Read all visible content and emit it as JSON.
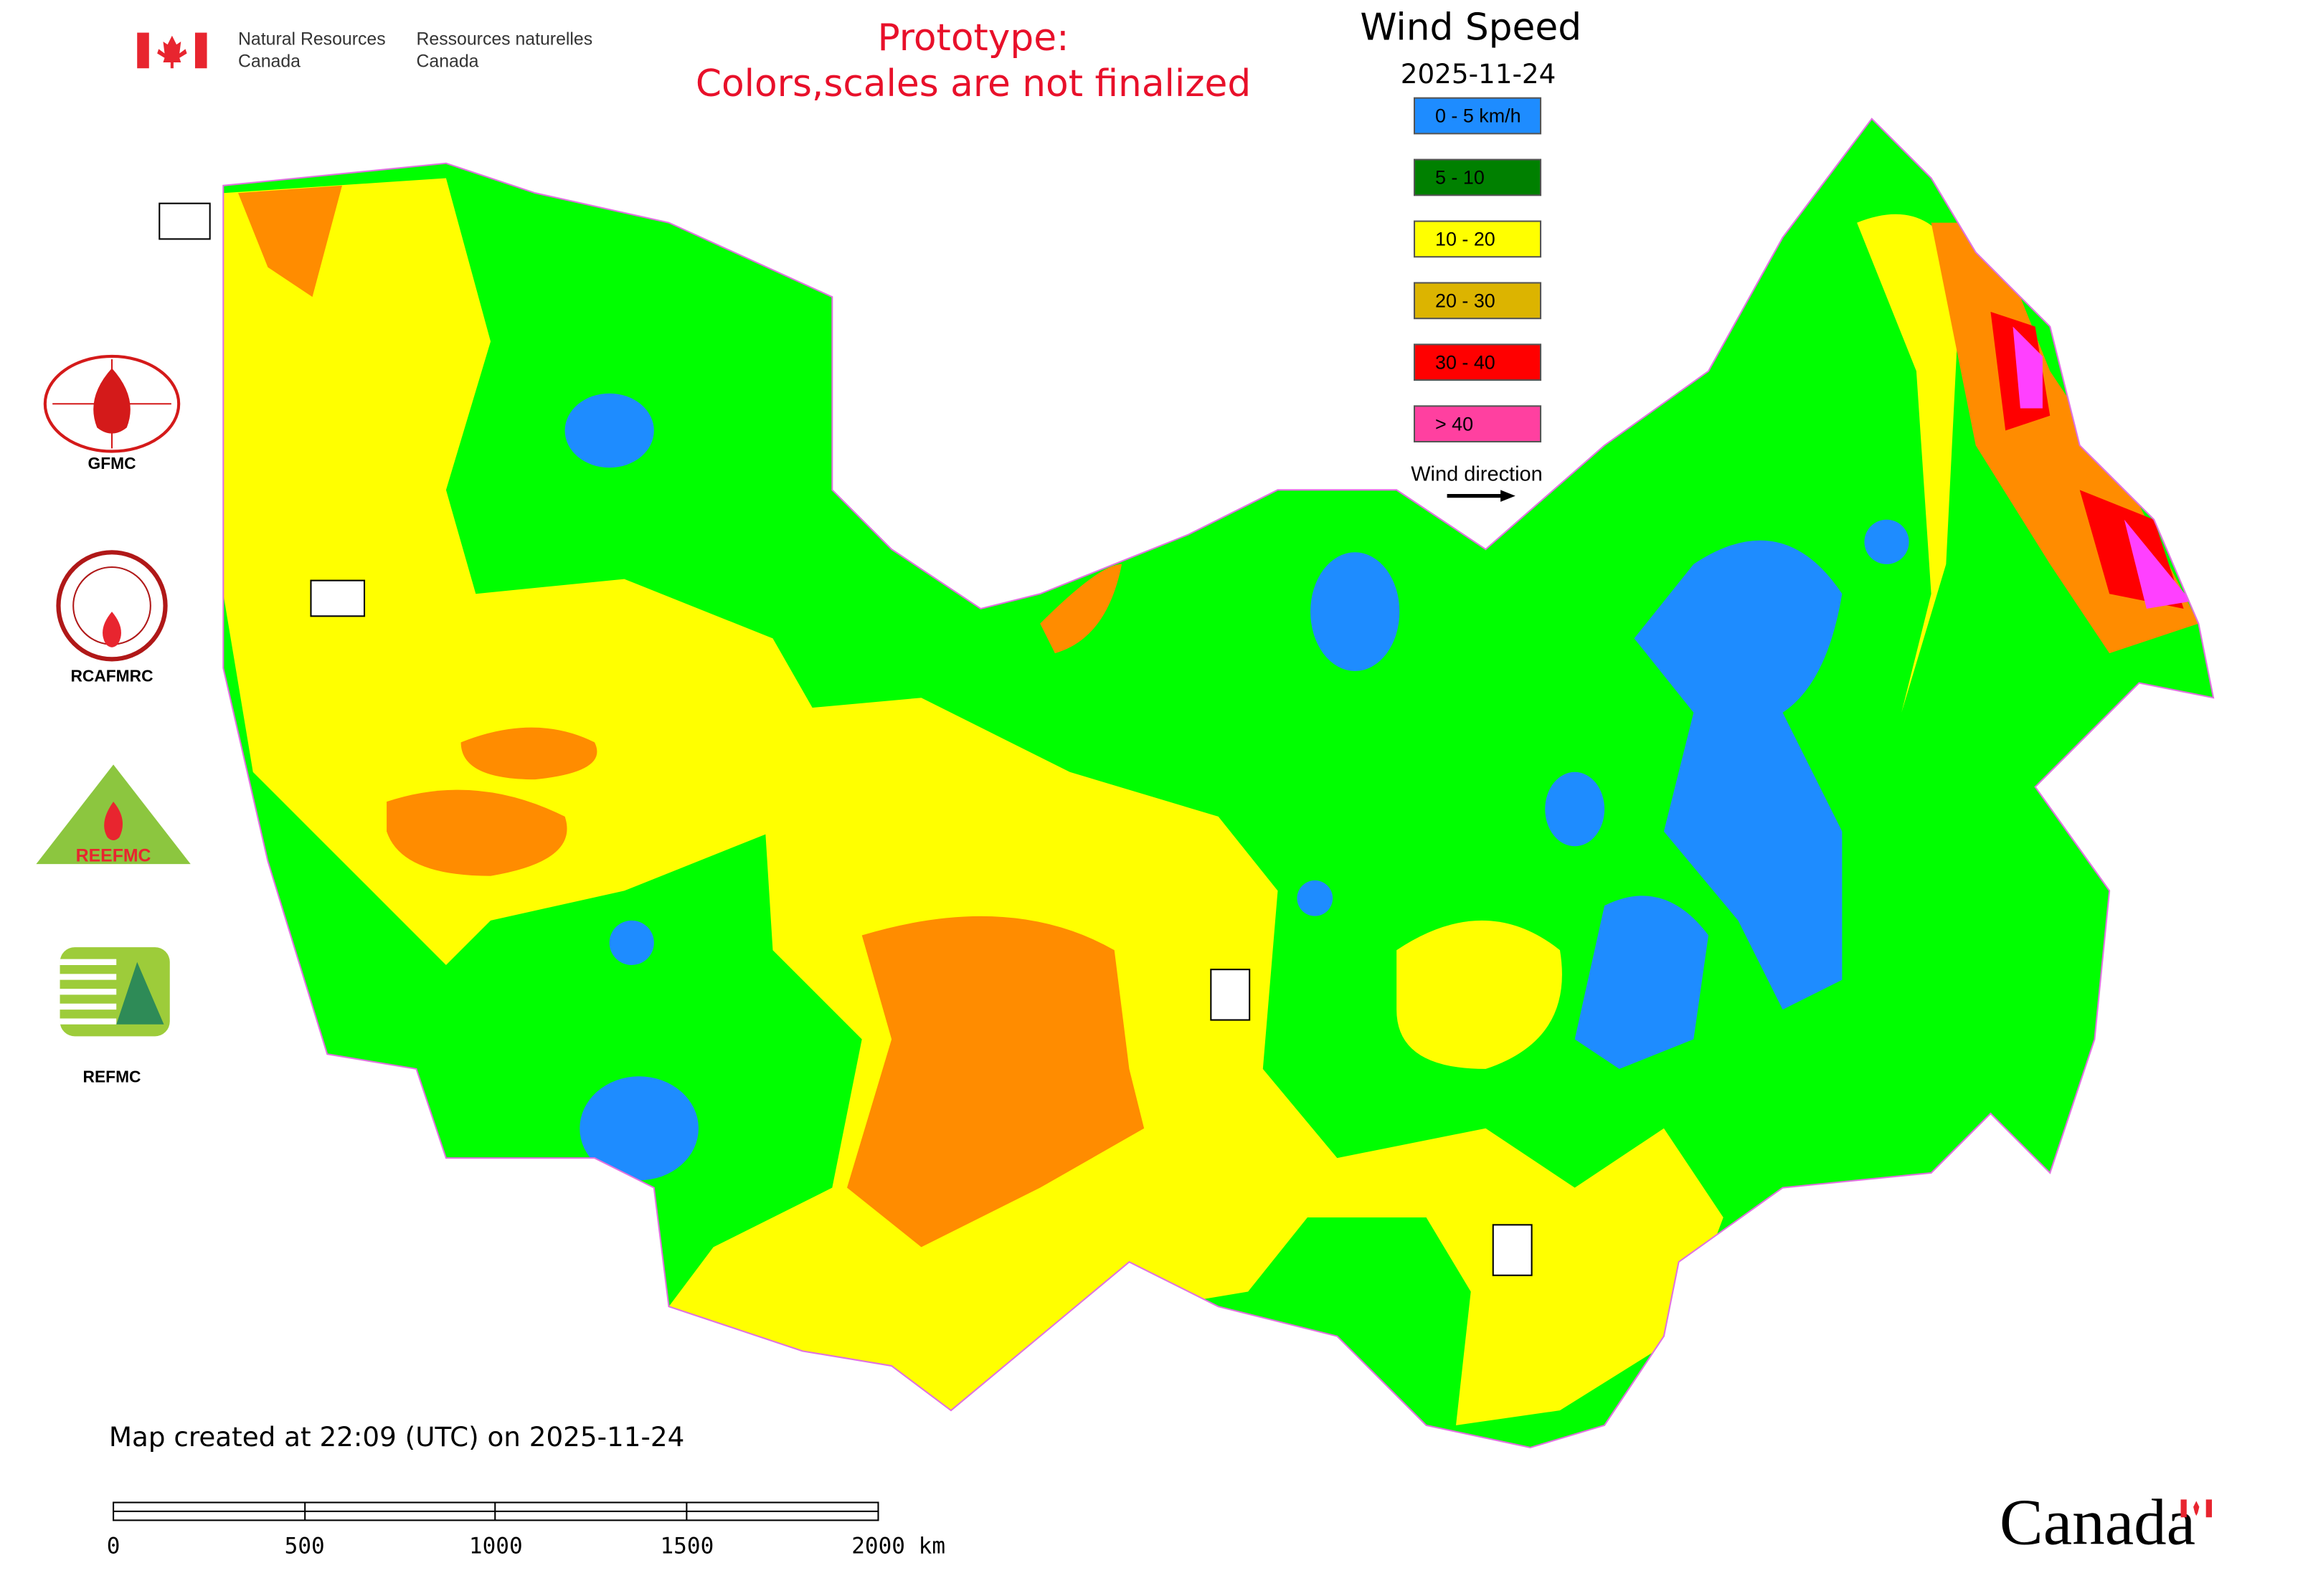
{
  "header": {
    "agency_en": [
      "Natural Resources",
      "Canada"
    ],
    "agency_fr": [
      "Ressources naturelles",
      "Canada"
    ],
    "notice": [
      "Prototype:",
      "Colors,scales are not finalized"
    ]
  },
  "legend": {
    "title": "Wind Speed",
    "date": "2025-11-24",
    "items": [
      {
        "label": "0 - 5 km/h",
        "color": "#1e8cff"
      },
      {
        "label": "5 - 10",
        "color": "#008000"
      },
      {
        "label": "10 - 20",
        "color": "#ffff00"
      },
      {
        "label": "20 - 30",
        "color": "#dcb400"
      },
      {
        "label": "30 - 40",
        "color": "#ff0000"
      },
      {
        "label": "> 40",
        "color": "#ff40a0"
      }
    ],
    "direction_label": "Wind direction"
  },
  "logos": [
    "GFMC",
    "RCAFMRC",
    "REEFMC",
    "REFMC"
  ],
  "footer": {
    "created": "Map created at 22:09 (UTC) on 2025-11-24",
    "scale_labels": [
      "0",
      "500",
      "1000",
      "1500",
      "2000 km"
    ],
    "wordmark": "Canada"
  }
}
